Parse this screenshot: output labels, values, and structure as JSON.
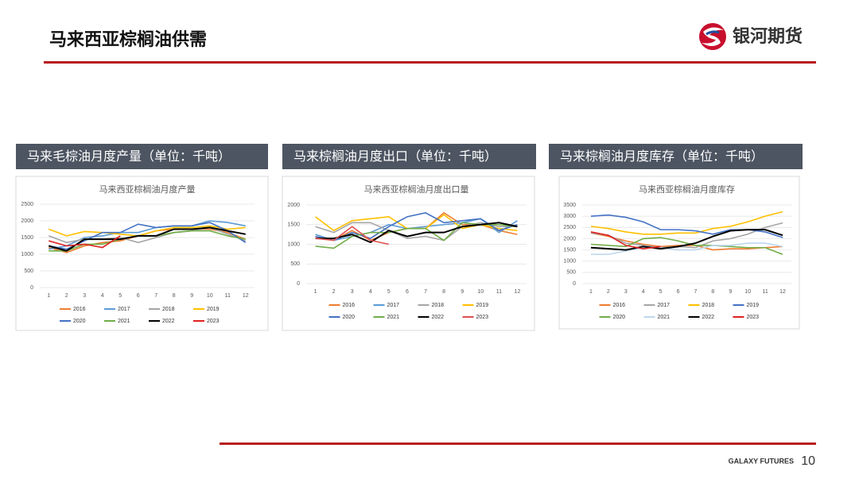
{
  "header": {
    "title": "马来西亚棕榈油供需",
    "logo_text": "银河期货"
  },
  "footer": {
    "brand": "GALAXY FUTURES",
    "page_number": "10"
  },
  "chart_data": [
    {
      "type": "line",
      "panel_title": "马来毛棕油月度产量（单位：千吨）",
      "title": "马来西亚棕榈油月度产量",
      "categories": [
        1,
        2,
        3,
        4,
        5,
        6,
        7,
        8,
        9,
        10,
        11,
        12
      ],
      "ylim": [
        0,
        2500
      ],
      "yticks": [
        0,
        500,
        1000,
        1500,
        2000,
        2500
      ],
      "series": [
        {
          "name": "2016",
          "color": "#ed7d31",
          "values": [
            1200,
            1050,
            1250,
            1350,
            1400,
            1550,
            1700,
            1750,
            1750,
            1750,
            1650,
            1450
          ]
        },
        {
          "name": "2017",
          "color": "#5b9bd5",
          "values": [
            1150,
            1250,
            1500,
            1550,
            1650,
            1650,
            1800,
            1850,
            1850,
            2000,
            1950,
            1850
          ]
        },
        {
          "name": "2018",
          "color": "#a5a5a5",
          "values": [
            1550,
            1350,
            1450,
            1450,
            1500,
            1350,
            1500,
            1650,
            1700,
            1800,
            1600,
            1400
          ]
        },
        {
          "name": "2019",
          "color": "#ffc000",
          "values": [
            1750,
            1550,
            1680,
            1650,
            1600,
            1550,
            1700,
            1800,
            1800,
            1850,
            1750,
            1800
          ]
        },
        {
          "name": "2020",
          "color": "#4472c4",
          "values": [
            1250,
            1150,
            1400,
            1650,
            1650,
            1900,
            1800,
            1850,
            1850,
            1950,
            1700,
            1350
          ]
        },
        {
          "name": "2021",
          "color": "#70ad47",
          "values": [
            1100,
            1100,
            1300,
            1300,
            1450,
            1550,
            1550,
            1650,
            1700,
            1700,
            1550,
            1450
          ]
        },
        {
          "name": "2022",
          "color": "#000000",
          "values": [
            1250,
            1100,
            1450,
            1450,
            1450,
            1550,
            1550,
            1750,
            1750,
            1800,
            1700,
            1600
          ]
        },
        {
          "name": "2023",
          "color": "#e02020",
          "values": [
            1400,
            1250,
            1300,
            1200,
            1550,
            null,
            null,
            null,
            null,
            null,
            null,
            null
          ]
        }
      ]
    },
    {
      "type": "line",
      "panel_title": "马来棕榈油月度出口（单位：千吨）",
      "title": "马来西亚棕榈油月度出口量",
      "categories": [
        1,
        2,
        3,
        4,
        5,
        6,
        7,
        8,
        9,
        10,
        11,
        12
      ],
      "ylim": [
        0,
        2000
      ],
      "yticks": [
        0,
        500,
        1000,
        1500,
        2000
      ],
      "series": [
        {
          "name": "2016",
          "color": "#ed7d31",
          "values": [
            1200,
            1100,
            1350,
            1100,
            1300,
            1400,
            1400,
            1800,
            1500,
            1500,
            1350,
            1250
          ]
        },
        {
          "name": "2017",
          "color": "#5b9bd5",
          "values": [
            1250,
            1100,
            1200,
            1300,
            1500,
            1400,
            1450,
            1500,
            1550,
            1650,
            1300,
            1600
          ]
        },
        {
          "name": "2018",
          "color": "#a5a5a5",
          "values": [
            1450,
            1300,
            1550,
            1550,
            1350,
            1150,
            1200,
            1100,
            1450,
            1550,
            1450,
            1450
          ]
        },
        {
          "name": "2019",
          "color": "#ffc000",
          "values": [
            1700,
            1350,
            1600,
            1650,
            1700,
            1400,
            1400,
            1750,
            1400,
            1500,
            1400,
            1350
          ]
        },
        {
          "name": "2020",
          "color": "#4472c4",
          "values": [
            1200,
            1100,
            1300,
            1150,
            1450,
            1700,
            1800,
            1550,
            1600,
            1650,
            1350,
            1500
          ]
        },
        {
          "name": "2021",
          "color": "#70ad47",
          "values": [
            950,
            900,
            1200,
            1300,
            1300,
            1400,
            1400,
            1100,
            1550,
            1500,
            1500,
            1450
          ]
        },
        {
          "name": "2022",
          "color": "#000000",
          "values": [
            1150,
            1150,
            1250,
            1050,
            1350,
            1200,
            1300,
            1300,
            1450,
            1500,
            1550,
            1450
          ]
        },
        {
          "name": "2023",
          "color": "#e05050",
          "values": [
            1150,
            1100,
            1450,
            1100,
            1000,
            null,
            null,
            null,
            null,
            null,
            null,
            null
          ]
        }
      ]
    },
    {
      "type": "line",
      "panel_title": "马来棕榈油月度库存（单位：千吨）",
      "title": "马来西亚棕榈油月度库存",
      "categories": [
        1,
        2,
        3,
        4,
        5,
        6,
        7,
        8,
        9,
        10,
        11,
        12
      ],
      "ylim": [
        0,
        3500
      ],
      "yticks": [
        0,
        500,
        1000,
        1500,
        2000,
        2500,
        3000,
        3500
      ],
      "series": [
        {
          "name": "2016",
          "color": "#ed7d31",
          "values": [
            2250,
            2100,
            1900,
            1750,
            1650,
            1700,
            1700,
            1500,
            1550,
            1550,
            1600,
            1650
          ]
        },
        {
          "name": "2017",
          "color": "#a5a5a5",
          "values": [
            2250,
            2150,
            1800,
            1700,
            1600,
            1650,
            1600,
            1900,
            2000,
            2200,
            2500,
            2700
          ]
        },
        {
          "name": "2018",
          "color": "#ffc000",
          "values": [
            2550,
            2450,
            2300,
            2200,
            2200,
            2250,
            2250,
            2450,
            2550,
            2750,
            3000,
            3200
          ]
        },
        {
          "name": "2019",
          "color": "#4472c4",
          "values": [
            3000,
            3050,
            2950,
            2750,
            2400,
            2400,
            2350,
            2200,
            2400,
            2400,
            2300,
            2050
          ]
        },
        {
          "name": "2020",
          "color": "#70ad47",
          "values": [
            1750,
            1700,
            1650,
            2000,
            2050,
            1900,
            1700,
            1700,
            1650,
            1600,
            1600,
            1300
          ]
        },
        {
          "name": "2021",
          "color": "#bdd7ee",
          "values": [
            1300,
            1300,
            1450,
            1600,
            1600,
            1500,
            1500,
            1700,
            1700,
            1800,
            1800,
            1650
          ]
        },
        {
          "name": "2022",
          "color": "#000000",
          "values": [
            1600,
            1550,
            1500,
            1650,
            1550,
            1650,
            1800,
            2100,
            2350,
            2400,
            2400,
            2150
          ]
        },
        {
          "name": "2023",
          "color": "#e02020",
          "values": [
            2300,
            2150,
            1700,
            1550,
            1650,
            null,
            null,
            null,
            null,
            null,
            null,
            null
          ]
        }
      ]
    }
  ]
}
